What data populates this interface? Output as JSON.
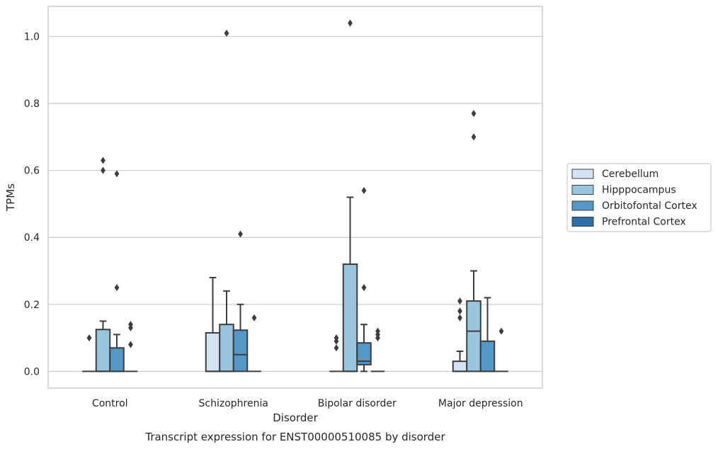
{
  "chart_data": {
    "type": "box",
    "caption": "Transcript expression for ENST00000510085 by disorder",
    "xlabel": "Disorder",
    "ylabel": "TPMs",
    "ylim": [
      -0.05,
      1.09
    ],
    "yticks": [
      0.0,
      0.2,
      0.4,
      0.6,
      0.8,
      1.0
    ],
    "ytick_labels": [
      "0.0",
      "0.2",
      "0.4",
      "0.6",
      "0.8",
      "1.0"
    ],
    "grid": "horizontal",
    "legend_position": "right",
    "categories": [
      "Control",
      "Schizophrenia",
      "Bipolar disorder",
      "Major depression"
    ],
    "colors": {
      "Cerebellum": "#d4e3f1",
      "Hipppocampus": "#9ac5de",
      "Orbitofontal Cortex": "#5597c6",
      "Prefrontal Cortex": "#2c6ea8",
      "edge": "#3d3d3d",
      "grid": "#cccccc",
      "frame": "#cccccc"
    },
    "series": [
      {
        "name": "Cerebellum",
        "boxes": [
          {
            "q1": 0.0,
            "median": 0.0,
            "q3": 0.0,
            "whislo": 0.0,
            "whishi": 0.0,
            "fliers": [
              0.1
            ]
          },
          {
            "q1": 0.0,
            "median": 0.0,
            "q3": 0.115,
            "whislo": 0.0,
            "whishi": 0.28,
            "fliers": []
          },
          {
            "q1": 0.0,
            "median": 0.0,
            "q3": 0.0,
            "whislo": 0.0,
            "whishi": 0.0,
            "fliers": [
              0.07,
              0.09,
              0.1
            ]
          },
          {
            "q1": 0.0,
            "median": 0.0,
            "q3": 0.03,
            "whislo": 0.0,
            "whishi": 0.06,
            "fliers": [
              0.16,
              0.18,
              0.21
            ]
          }
        ]
      },
      {
        "name": "Hipppocampus",
        "boxes": [
          {
            "q1": 0.0,
            "median": 0.0,
            "q3": 0.125,
            "whislo": 0.0,
            "whishi": 0.15,
            "fliers": [
              0.6,
              0.63
            ]
          },
          {
            "q1": 0.0,
            "median": 0.0,
            "q3": 0.14,
            "whislo": 0.0,
            "whishi": 0.24,
            "fliers": [
              1.01
            ]
          },
          {
            "q1": 0.0,
            "median": 0.0,
            "q3": 0.32,
            "whislo": 0.0,
            "whishi": 0.52,
            "fliers": [
              1.04
            ]
          },
          {
            "q1": 0.0,
            "median": 0.12,
            "q3": 0.21,
            "whislo": 0.0,
            "whishi": 0.3,
            "fliers": [
              0.7,
              0.77
            ]
          }
        ]
      },
      {
        "name": "Orbitofontal Cortex",
        "boxes": [
          {
            "q1": 0.0,
            "median": 0.0,
            "q3": 0.07,
            "whislo": 0.0,
            "whishi": 0.11,
            "fliers": [
              0.25,
              0.59
            ]
          },
          {
            "q1": 0.0,
            "median": 0.05,
            "q3": 0.123,
            "whislo": 0.0,
            "whishi": 0.2,
            "fliers": [
              0.41
            ]
          },
          {
            "q1": 0.02,
            "median": 0.03,
            "q3": 0.085,
            "whislo": 0.0,
            "whishi": 0.14,
            "fliers": [
              0.25,
              0.54
            ]
          },
          {
            "q1": 0.0,
            "median": 0.0,
            "q3": 0.09,
            "whislo": 0.0,
            "whishi": 0.22,
            "fliers": []
          }
        ]
      },
      {
        "name": "Prefrontal Cortex",
        "boxes": [
          {
            "q1": 0.0,
            "median": 0.0,
            "q3": 0.0,
            "whislo": 0.0,
            "whishi": 0.0,
            "fliers": [
              0.08,
              0.13,
              0.14
            ]
          },
          {
            "q1": 0.0,
            "median": 0.0,
            "q3": 0.0,
            "whislo": 0.0,
            "whishi": 0.0,
            "fliers": [
              0.16
            ]
          },
          {
            "q1": 0.0,
            "median": 0.0,
            "q3": 0.0,
            "whislo": 0.0,
            "whishi": 0.0,
            "fliers": [
              0.1,
              0.11,
              0.12
            ]
          },
          {
            "q1": 0.0,
            "median": 0.0,
            "q3": 0.0,
            "whislo": 0.0,
            "whishi": 0.0,
            "fliers": [
              0.12
            ]
          }
        ]
      }
    ]
  }
}
